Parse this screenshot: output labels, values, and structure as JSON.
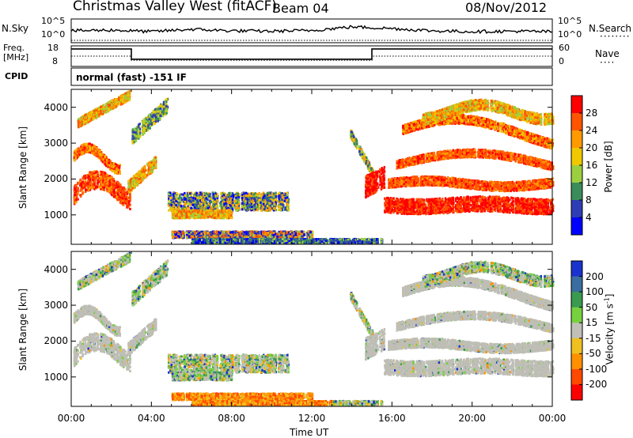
{
  "header": {
    "station": "Christmas Valley West (fitACF)",
    "beam": "Beam 04",
    "date": "08/Nov/2012"
  },
  "cpid": {
    "label": "CPID",
    "mode": "normal (fast) -151 IF"
  },
  "noise_panel": {
    "left_label": "N.Sky",
    "right_label": "N.Search",
    "left_ticks": [
      "10^5",
      "10^0"
    ],
    "right_ticks": [
      "10^5",
      "10^0"
    ]
  },
  "freq_panel": {
    "left_label_1": "Freq.",
    "left_label_2": "[MHz]",
    "right_label": "Nave",
    "left_ticks": [
      "18",
      "8"
    ],
    "right_ticks": [
      "60",
      "0"
    ]
  },
  "colors": {
    "power": [
      "#0000ff",
      "#2e3db4",
      "#3a8c5a",
      "#9ccf40",
      "#f0c800",
      "#ff9a00",
      "#ff5500",
      "#ff0000"
    ],
    "velocity": [
      "#1a33cc",
      "#3a6ea0",
      "#3a9a50",
      "#76d040",
      "#c0c0b8",
      "#f0c020",
      "#ff9000",
      "#ff4800",
      "#ff0000"
    ],
    "ground_scatter": "#bebeb6"
  },
  "chart_data": [
    {
      "type": "line",
      "panel": "noise",
      "x": [
        "00:00",
        "02:00",
        "04:00",
        "06:00",
        "08:00",
        "10:00",
        "12:00",
        "14:00",
        "16:00",
        "18:00",
        "20:00",
        "22:00",
        "24:00"
      ],
      "series": [
        {
          "values": [
            30,
            32,
            28,
            34,
            30,
            29,
            31,
            40,
            36,
            30,
            28,
            29,
            28
          ]
        },
        {
          "values": [
            3,
            3,
            3,
            3,
            3,
            3,
            3,
            3,
            3,
            3,
            3,
            3,
            3
          ]
        }
      ]
    },
    {
      "type": "line",
      "panel": "frequency",
      "ylim": [
        8,
        18
      ],
      "x": [
        "00:00",
        "03:00",
        "03:00",
        "15:00",
        "15:00",
        "24:00"
      ],
      "series": [
        {
          "values": [
            16.5,
            16.5,
            11.5,
            11.5,
            16.5,
            16.5
          ]
        }
      ],
      "nave_ylim": [
        0,
        60
      ],
      "nave": [
        30,
        30,
        18,
        18,
        30,
        30
      ]
    },
    {
      "type": "heatmap",
      "panel": "power",
      "ylabel": "Slant Range [km]",
      "xlabel": "Time UT",
      "xlim": [
        0,
        24
      ],
      "ylim": [
        180,
        4500
      ],
      "x_ticks": [
        "00:00",
        "04:00",
        "08:00",
        "12:00",
        "16:00",
        "20:00",
        "00:00"
      ],
      "y_ticks": [
        "1000",
        "2000",
        "3000",
        "4000"
      ],
      "colorbar_label": "Power [dB]",
      "colorbar_ticks": [
        "4",
        "8",
        "12",
        "16",
        "20",
        "24",
        "28"
      ],
      "colorbar_range": [
        0,
        32
      ]
    },
    {
      "type": "heatmap",
      "panel": "velocity",
      "ylabel": "Slant Range [km]",
      "xlabel": "Time UT",
      "xlim": [
        0,
        24
      ],
      "ylim": [
        180,
        4500
      ],
      "x_ticks": [
        "00:00",
        "04:00",
        "08:00",
        "12:00",
        "16:00",
        "20:00",
        "00:00"
      ],
      "y_ticks": [
        "1000",
        "2000",
        "3000",
        "4000"
      ],
      "colorbar_label": "Velocity [m s^-1]",
      "colorbar_ticks": [
        "200",
        "100",
        "50",
        "15",
        "-15",
        "-50",
        "-100",
        "-200"
      ]
    }
  ]
}
